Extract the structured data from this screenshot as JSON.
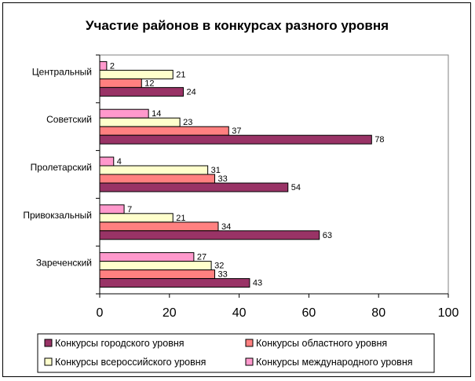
{
  "chart_data": {
    "type": "bar",
    "orientation": "horizontal",
    "title": "Участие районов в конкурсах разного уровня",
    "xlabel": "",
    "ylabel": "",
    "xlim": [
      0,
      100
    ],
    "xticks": [
      "0",
      "20",
      "40",
      "60",
      "80",
      "100"
    ],
    "categories": [
      "Центральный",
      "Советский",
      "Пролетарский",
      "Привокзальный",
      "Зареченский"
    ],
    "series": [
      {
        "name": "Конкурсы городского уровня",
        "color": "#993366",
        "values": [
          24,
          78,
          54,
          63,
          43
        ]
      },
      {
        "name": "Конкурсы областного уровня",
        "color": "#ff8080",
        "values": [
          12,
          37,
          33,
          34,
          33
        ]
      },
      {
        "name": "Конкурсы всероссийского уровня",
        "color": "#ffffcc",
        "values": [
          21,
          23,
          31,
          21,
          32
        ]
      },
      {
        "name": "Конкурсы международного уровня",
        "color": "#ff99cc",
        "values": [
          2,
          14,
          4,
          7,
          27
        ]
      }
    ],
    "data_labels": true,
    "grid": false,
    "legend_position": "bottom"
  }
}
